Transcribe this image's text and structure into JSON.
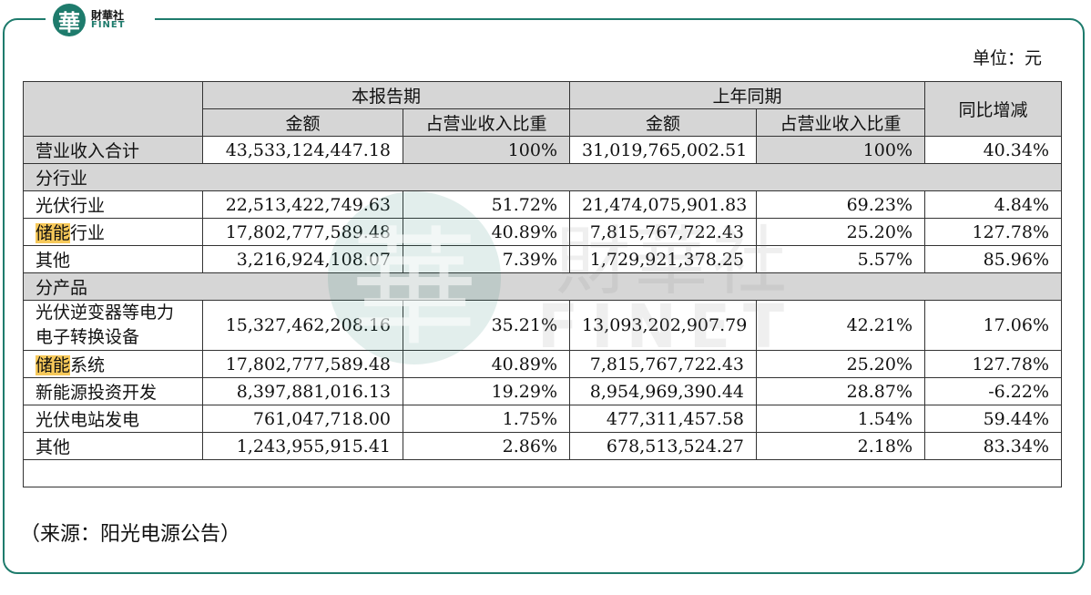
{
  "brand": {
    "logo_char": "華",
    "name_cn": "財華社",
    "name_en": "FINET"
  },
  "unit_label": "单位：元",
  "table": {
    "col_group_current": "本报告期",
    "col_group_prior": "上年同期",
    "col_yoy": "同比增减",
    "col_amount": "金额",
    "col_ratio": "占营业收入比重",
    "total": {
      "label": "营业收入合计",
      "cur_amount": "43,533,124,447.18",
      "cur_ratio": "100%",
      "prior_amount": "31,019,765,002.51",
      "prior_ratio": "100%",
      "yoy": "40.34%"
    },
    "section_industry": "分行业",
    "industry_rows": [
      {
        "label": "光伏行业",
        "cur_amount": "22,513,422,749.63",
        "cur_ratio": "51.72%",
        "prior_amount": "21,474,075,901.83",
        "prior_ratio": "69.23%",
        "yoy": "4.84%"
      },
      {
        "label_hl": "储能",
        "label_rest": "行业",
        "cur_amount": "17,802,777,589.48",
        "cur_ratio": "40.89%",
        "prior_amount": "7,815,767,722.43",
        "prior_ratio": "25.20%",
        "yoy": "127.78%"
      },
      {
        "label": "其他",
        "cur_amount": "3,216,924,108.07",
        "cur_ratio": "7.39%",
        "prior_amount": "1,729,921,378.25",
        "prior_ratio": "5.57%",
        "yoy": "85.96%"
      }
    ],
    "section_product": "分产品",
    "product_rows": [
      {
        "label_line1": "光伏逆变器等电力",
        "label_line2": "电子转换设备",
        "cur_amount": "15,327,462,208.16",
        "cur_ratio": "35.21%",
        "prior_amount": "13,093,202,907.79",
        "prior_ratio": "42.21%",
        "yoy": "17.06%"
      },
      {
        "label_hl": "储能",
        "label_rest": "系统",
        "cur_amount": "17,802,777,589.48",
        "cur_ratio": "40.89%",
        "prior_amount": "7,815,767,722.43",
        "prior_ratio": "25.20%",
        "yoy": "127.78%"
      },
      {
        "label": "新能源投资开发",
        "cur_amount": "8,397,881,016.13",
        "cur_ratio": "19.29%",
        "prior_amount": "8,954,969,390.44",
        "prior_ratio": "28.87%",
        "yoy": "-6.22%"
      },
      {
        "label": "光伏电站发电",
        "cur_amount": "761,047,718.00",
        "cur_ratio": "1.75%",
        "prior_amount": "477,311,457.58",
        "prior_ratio": "1.54%",
        "yoy": "59.44%"
      },
      {
        "label": "其他",
        "cur_amount": "1,243,955,915.41",
        "cur_ratio": "2.86%",
        "prior_amount": "678,513,524.27",
        "prior_ratio": "2.18%",
        "yoy": "83.34%"
      }
    ]
  },
  "source_note": "（来源：阳光电源公告）",
  "colors": {
    "brand_green": "#1e7b6c",
    "header_gray": "#d6d6d6",
    "highlight": "#f7c95a"
  }
}
